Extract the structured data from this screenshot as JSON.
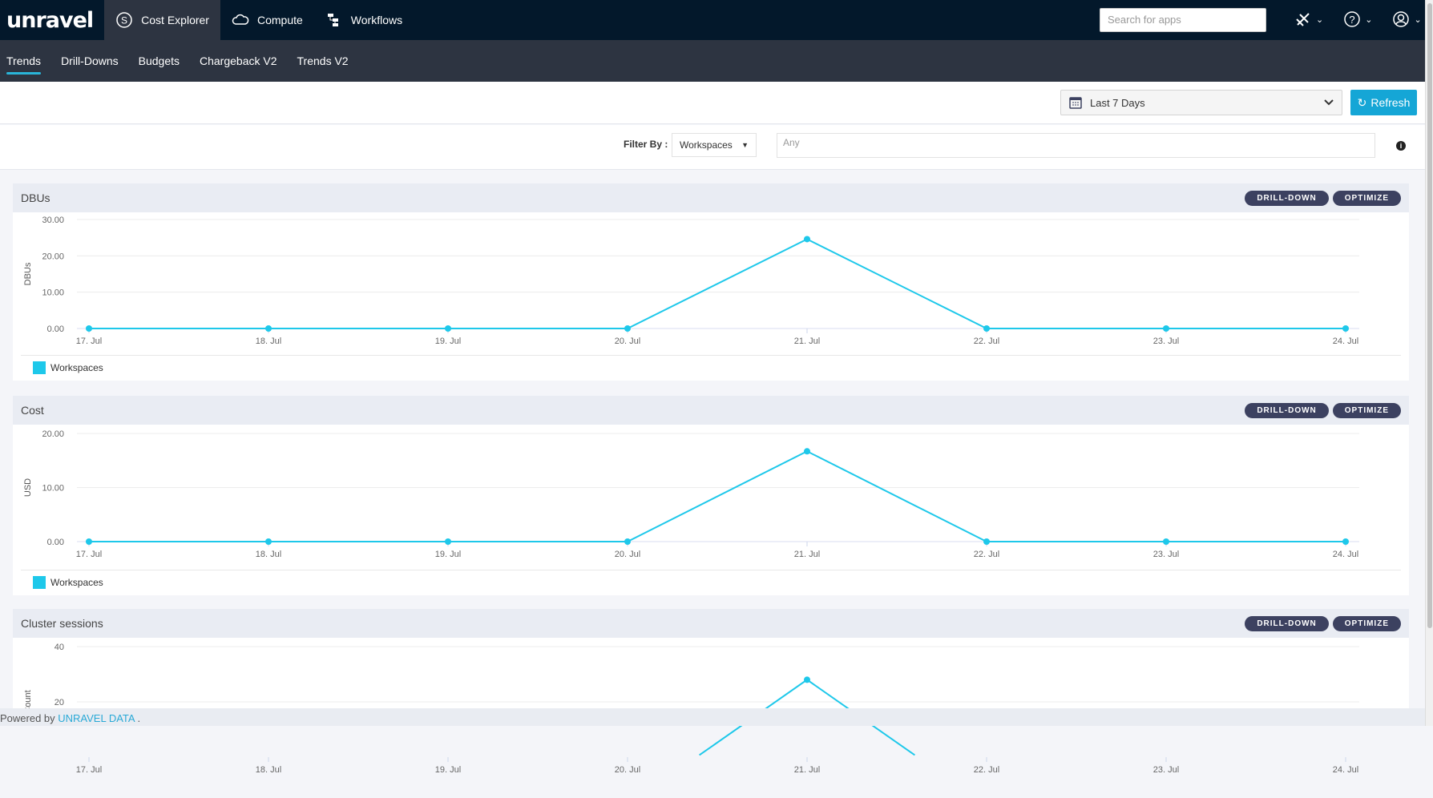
{
  "topnav": {
    "logo": "unravel",
    "items": [
      {
        "label": "Cost Explorer",
        "icon": "dollar-circle-icon",
        "active": true
      },
      {
        "label": "Compute",
        "icon": "cloud-icon"
      },
      {
        "label": "Workflows",
        "icon": "workflow-icon"
      }
    ],
    "search_placeholder": "Search for apps",
    "icons": [
      "satellite-icon",
      "help-icon",
      "user-icon"
    ]
  },
  "subnav": {
    "tabs": [
      {
        "label": "Trends",
        "active": true
      },
      {
        "label": "Drill-Downs"
      },
      {
        "label": "Budgets"
      },
      {
        "label": "Chargeback V2"
      },
      {
        "label": "Trends V2"
      }
    ]
  },
  "toolbar": {
    "date_range": "Last 7 Days",
    "refresh": "Refresh"
  },
  "filter": {
    "label": "Filter By :",
    "select": "Workspaces",
    "input_placeholder": "Any"
  },
  "accent": "#1ec8ea",
  "panels": [
    {
      "title": "DBUs",
      "drill": "DRILL-DOWN",
      "optimize": "OPTIMIZE",
      "legend": "Workspaces"
    },
    {
      "title": "Cost",
      "drill": "DRILL-DOWN",
      "optimize": "OPTIMIZE",
      "legend": "Workspaces"
    },
    {
      "title": "Cluster sessions",
      "drill": "DRILL-DOWN",
      "optimize": "OPTIMIZE"
    }
  ],
  "footer": {
    "text": "Powered by ",
    "link": "UNRAVEL DATA",
    "suffix": " ."
  },
  "chart_data": [
    {
      "type": "line",
      "title": "DBUs",
      "ylabel": "DBUs",
      "categories": [
        "17. Jul",
        "18. Jul",
        "19. Jul",
        "20. Jul",
        "21. Jul",
        "22. Jul",
        "23. Jul",
        "24. Jul"
      ],
      "series": [
        {
          "name": "Workspaces",
          "values": [
            0,
            0,
            0,
            0,
            24.6,
            0,
            0,
            0
          ]
        }
      ],
      "ylim": [
        0,
        30
      ],
      "yticks": [
        "0.00",
        "10.00",
        "20.00",
        "30.00"
      ],
      "grid": true,
      "legend": "bottom-left"
    },
    {
      "type": "line",
      "title": "Cost",
      "ylabel": "USD",
      "categories": [
        "17. Jul",
        "18. Jul",
        "19. Jul",
        "20. Jul",
        "21. Jul",
        "22. Jul",
        "23. Jul",
        "24. Jul"
      ],
      "series": [
        {
          "name": "Workspaces",
          "values": [
            0,
            0,
            0,
            0,
            16.7,
            0,
            0,
            0
          ]
        }
      ],
      "ylim": [
        0,
        20
      ],
      "yticks": [
        "0.00",
        "10.00",
        "20.00"
      ],
      "grid": true,
      "legend": "bottom-left"
    },
    {
      "type": "line",
      "title": "Cluster sessions",
      "ylabel": "Count",
      "categories": [
        "17. Jul",
        "18. Jul",
        "19. Jul",
        "20. Jul",
        "21. Jul",
        "22. Jul",
        "23. Jul",
        "24. Jul"
      ],
      "series": [
        {
          "values": [
            null,
            null,
            null,
            null,
            28,
            null,
            null,
            null
          ]
        }
      ],
      "ylim": [
        0,
        40
      ],
      "yticks": [
        "20",
        "40"
      ],
      "grid": true
    }
  ]
}
